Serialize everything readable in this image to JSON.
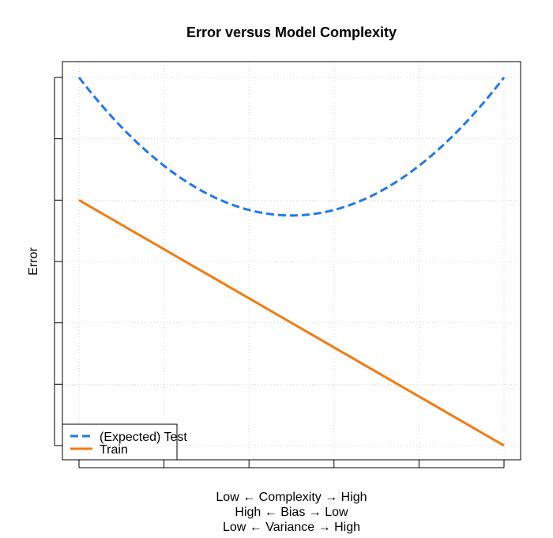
{
  "chart_data": {
    "type": "line",
    "title": "Error versus Model Complexity",
    "ylabel": "Error",
    "xlabel_lines": [
      "Low ← Complexity → High",
      "High ← Bias → Low",
      "Low ← Variance → High"
    ],
    "x_tick_count": 6,
    "y_tick_count": 7,
    "x": [
      0,
      1,
      2,
      3,
      4,
      5
    ],
    "grid": true,
    "legend_position": "bottom-left",
    "series": [
      {
        "name": "(Expected) Test",
        "style": "dashed",
        "color": "#1f78f0",
        "values": [
          6.0,
          4.75,
          4.0,
          3.75,
          4.0,
          4.75,
          6.0
        ],
        "x": [
          0,
          0.8333,
          1.6667,
          2.5,
          3.3333,
          4.1667,
          5
        ]
      },
      {
        "name": "Train",
        "style": "solid",
        "color": "#f57a0f",
        "values": [
          4.0,
          0.0
        ],
        "x": [
          0,
          5
        ]
      }
    ],
    "xlim": [
      0,
      5
    ],
    "ylim": [
      0,
      6
    ]
  }
}
